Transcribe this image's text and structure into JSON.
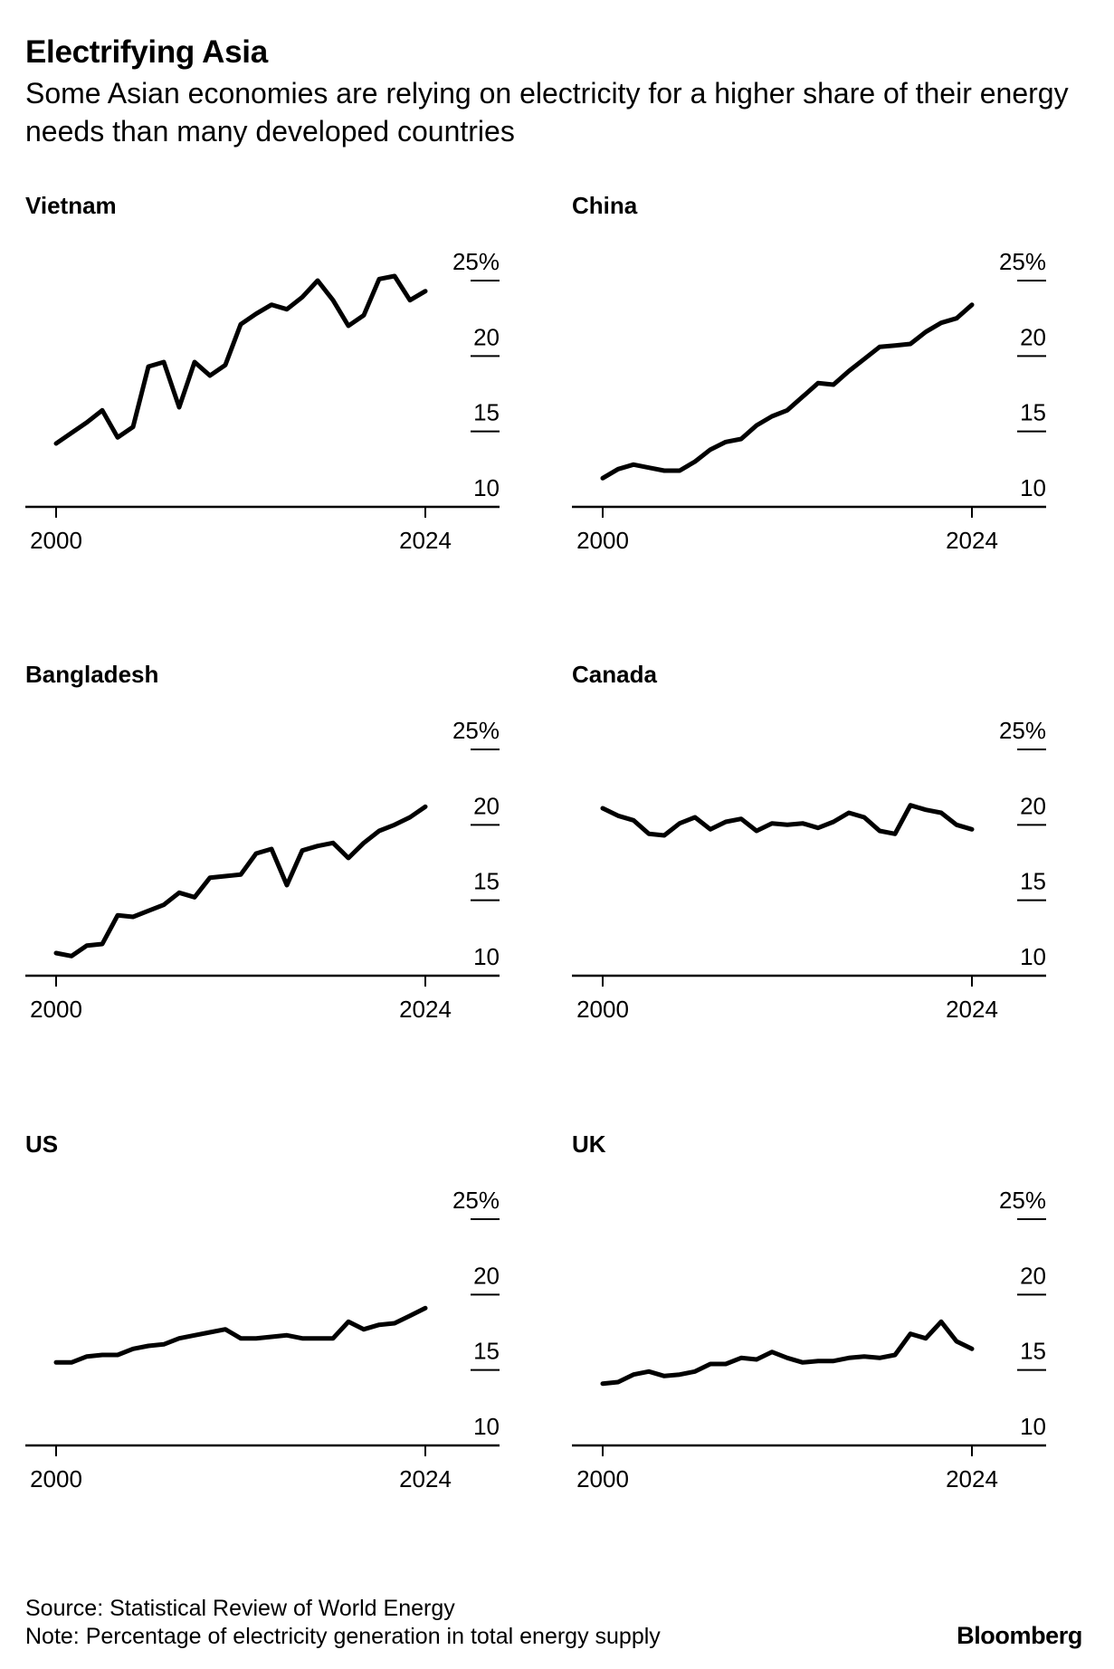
{
  "title": "Electrifying Asia",
  "subtitle": "Some Asian economies are relying on electricity for a higher share of their energy needs than many developed countries",
  "source": "Source: Statistical Review of World Energy",
  "note": "Note: Percentage of electricity generation in total energy supply",
  "brand": "Bloomberg",
  "chart_data": [
    {
      "type": "line",
      "title": "Vietnam",
      "x": [
        2000,
        2001,
        2002,
        2003,
        2004,
        2005,
        2006,
        2007,
        2008,
        2009,
        2010,
        2011,
        2012,
        2013,
        2014,
        2015,
        2016,
        2017,
        2018,
        2019,
        2020,
        2021,
        2022,
        2023,
        2024
      ],
      "values": [
        14.2,
        14.9,
        15.6,
        16.4,
        14.6,
        15.3,
        19.3,
        19.6,
        16.6,
        19.6,
        18.7,
        19.4,
        22.1,
        22.8,
        23.4,
        23.1,
        23.9,
        25.0,
        23.7,
        22.0,
        22.7,
        25.1,
        25.3,
        23.7,
        24.3
      ],
      "xticks": [
        "2000",
        "2024"
      ],
      "yticks": [
        "10",
        "15",
        "20",
        "25%"
      ],
      "ylim": [
        10,
        25
      ]
    },
    {
      "type": "line",
      "title": "China",
      "x": [
        2000,
        2001,
        2002,
        2003,
        2004,
        2005,
        2006,
        2007,
        2008,
        2009,
        2010,
        2011,
        2012,
        2013,
        2014,
        2015,
        2016,
        2017,
        2018,
        2019,
        2020,
        2021,
        2022,
        2023,
        2024
      ],
      "values": [
        11.9,
        12.5,
        12.8,
        12.6,
        12.4,
        12.4,
        13.0,
        13.8,
        14.3,
        14.5,
        15.4,
        16.0,
        16.4,
        17.3,
        18.2,
        18.1,
        19.0,
        19.8,
        20.6,
        20.7,
        20.8,
        21.6,
        22.2,
        22.5,
        23.4
      ],
      "xticks": [
        "2000",
        "2024"
      ],
      "yticks": [
        "10",
        "15",
        "20",
        "25%"
      ],
      "ylim": [
        10,
        25
      ]
    },
    {
      "type": "line",
      "title": "Bangladesh",
      "x": [
        2000,
        2001,
        2002,
        2003,
        2004,
        2005,
        2006,
        2007,
        2008,
        2009,
        2010,
        2011,
        2012,
        2013,
        2014,
        2015,
        2016,
        2017,
        2018,
        2019,
        2020,
        2021,
        2022,
        2023,
        2024
      ],
      "values": [
        11.5,
        11.3,
        12.0,
        12.1,
        14.0,
        13.9,
        14.3,
        14.7,
        15.5,
        15.2,
        16.5,
        16.6,
        16.7,
        18.1,
        18.4,
        16.0,
        18.3,
        18.6,
        18.8,
        17.8,
        18.8,
        19.6,
        20.0,
        20.5,
        21.2
      ],
      "xticks": [
        "2000",
        "2024"
      ],
      "yticks": [
        "10",
        "15",
        "20",
        "25%"
      ],
      "ylim": [
        10,
        25
      ]
    },
    {
      "type": "line",
      "title": "Canada",
      "x": [
        2000,
        2001,
        2002,
        2003,
        2004,
        2005,
        2006,
        2007,
        2008,
        2009,
        2010,
        2011,
        2012,
        2013,
        2014,
        2015,
        2016,
        2017,
        2018,
        2019,
        2020,
        2021,
        2022,
        2023,
        2024
      ],
      "values": [
        21.1,
        20.6,
        20.3,
        19.4,
        19.3,
        20.1,
        20.5,
        19.7,
        20.2,
        20.4,
        19.6,
        20.1,
        20.0,
        20.1,
        19.8,
        20.2,
        20.8,
        20.5,
        19.6,
        19.4,
        21.3,
        21.0,
        20.8,
        20.0,
        19.7
      ],
      "xticks": [
        "2000",
        "2024"
      ],
      "yticks": [
        "10",
        "15",
        "20",
        "25%"
      ],
      "ylim": [
        10,
        25
      ]
    },
    {
      "type": "line",
      "title": "US",
      "x": [
        2000,
        2001,
        2002,
        2003,
        2004,
        2005,
        2006,
        2007,
        2008,
        2009,
        2010,
        2011,
        2012,
        2013,
        2014,
        2015,
        2016,
        2017,
        2018,
        2019,
        2020,
        2021,
        2022,
        2023,
        2024
      ],
      "values": [
        15.5,
        15.5,
        15.9,
        16.0,
        16.0,
        16.4,
        16.6,
        16.7,
        17.1,
        17.3,
        17.5,
        17.7,
        17.1,
        17.1,
        17.2,
        17.3,
        17.1,
        17.1,
        17.1,
        18.2,
        17.7,
        18.0,
        18.1,
        18.6,
        19.1
      ],
      "xticks": [
        "2000",
        "2024"
      ],
      "yticks": [
        "10",
        "15",
        "20",
        "25%"
      ],
      "ylim": [
        10,
        25
      ]
    },
    {
      "type": "line",
      "title": "UK",
      "x": [
        2000,
        2001,
        2002,
        2003,
        2004,
        2005,
        2006,
        2007,
        2008,
        2009,
        2010,
        2011,
        2012,
        2013,
        2014,
        2015,
        2016,
        2017,
        2018,
        2019,
        2020,
        2021,
        2022,
        2023,
        2024
      ],
      "values": [
        14.1,
        14.2,
        14.7,
        14.9,
        14.6,
        14.7,
        14.9,
        15.4,
        15.4,
        15.8,
        15.7,
        16.2,
        15.8,
        15.5,
        15.6,
        15.6,
        15.8,
        15.9,
        15.8,
        16.0,
        17.4,
        17.1,
        18.2,
        16.9,
        16.4
      ],
      "xticks": [
        "2000",
        "2024"
      ],
      "yticks": [
        "10",
        "15",
        "20",
        "25%"
      ],
      "ylim": [
        10,
        25
      ]
    }
  ]
}
